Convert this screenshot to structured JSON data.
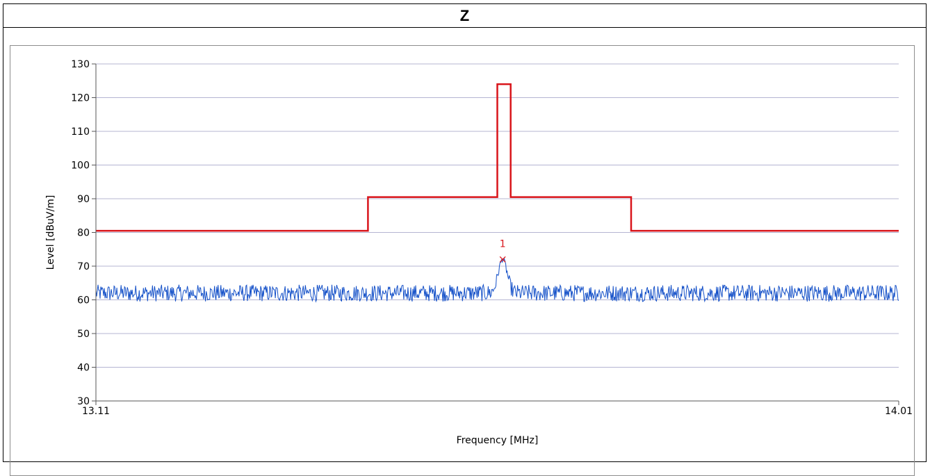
{
  "header": {
    "title": "Z"
  },
  "chart_data": {
    "type": "line",
    "xlabel": "Frequency [MHz]",
    "ylabel": "Level [dBuV/m]",
    "xlim": [
      13.11,
      14.01
    ],
    "ylim": [
      30,
      130
    ],
    "x_tick_labels": [
      "13.11",
      "14.01"
    ],
    "y_ticks": [
      30,
      40,
      50,
      60,
      70,
      80,
      90,
      100,
      110,
      120,
      130
    ],
    "grid": "horizontal",
    "series": [
      {
        "role": "limit",
        "color": "#d9141a",
        "x": [
          13.11,
          13.415,
          13.415,
          13.56,
          13.56,
          13.567,
          13.567,
          13.575,
          13.575,
          13.71,
          13.71,
          14.01
        ],
        "y": [
          80.5,
          80.5,
          90.5,
          90.5,
          124,
          124,
          124,
          124,
          90.5,
          90.5,
          80.5,
          80.5
        ]
      },
      {
        "role": "measurement",
        "color": "#1450c8",
        "baseline": 62,
        "noise_amplitude": 2.5,
        "peak_x": 13.566,
        "peak_y": 72,
        "peak_width": 0.007
      }
    ],
    "markers": [
      {
        "label": "1",
        "x": 13.566,
        "y": 72,
        "color": "#d9141a"
      }
    ]
  }
}
